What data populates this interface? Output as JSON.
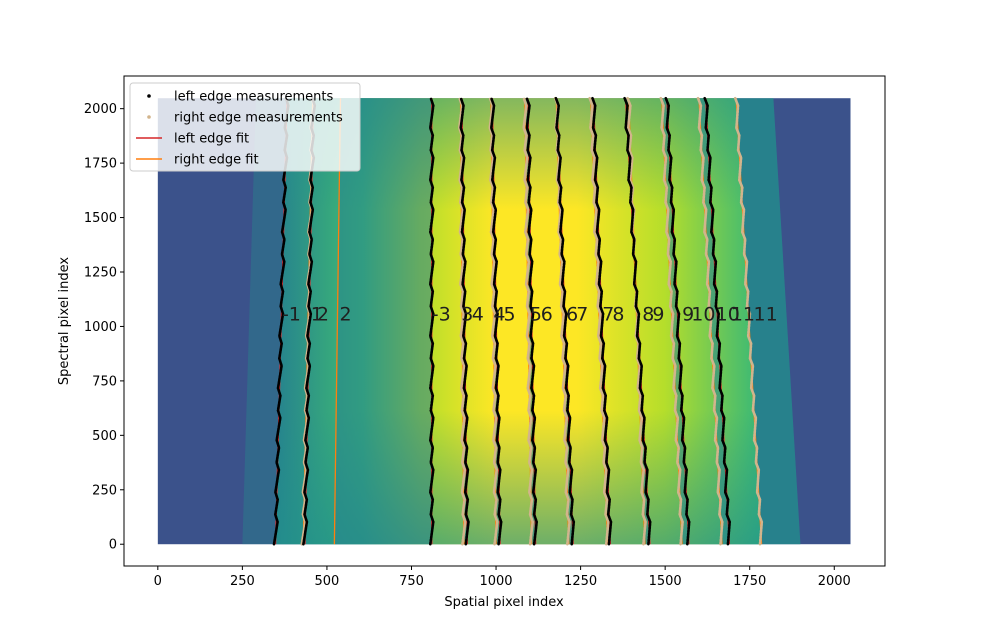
{
  "chart_data": {
    "type": "scatter",
    "xlabel": "Spatial pixel index",
    "ylabel": "Spectral pixel index",
    "xlim": [
      -100,
      2150
    ],
    "ylim": [
      -100,
      2150
    ],
    "xticks": [
      "0",
      "250",
      "500",
      "750",
      "1000",
      "1250",
      "1500",
      "1750",
      "2000"
    ],
    "yticks": [
      "0",
      "250",
      "500",
      "750",
      "1000",
      "1250",
      "1500",
      "1750",
      "2000"
    ],
    "image_extent": {
      "x": [
        0,
        2048
      ],
      "y": [
        0,
        2048
      ]
    },
    "legend": {
      "placement": "upper-left",
      "entries": [
        {
          "label": "left edge measurements",
          "kind": "dot",
          "color": "#000000"
        },
        {
          "label": "right edge measurements",
          "kind": "dot",
          "color": "#d2b48c"
        },
        {
          "label": "left edge fit",
          "kind": "line",
          "color": "#d62728"
        },
        {
          "label": "right edge fit",
          "kind": "line",
          "color": "#ff7f0e"
        }
      ]
    },
    "colors": {
      "background_low": "#3b528b",
      "background_mid": "#21918c",
      "slit_high": "#fde725",
      "left_measure": "#000000",
      "right_measure": "#d2b48c",
      "left_fit": "#d62728",
      "right_fit": "#ff7f0e"
    },
    "left_edges": [
      {
        "x_bottom": 348,
        "x_top": 382,
        "measured": true
      },
      {
        "x_bottom": 435,
        "x_top": 460,
        "measured": true
      },
      {
        "x_bottom": 810,
        "x_top": 810,
        "measured": true
      },
      {
        "x_bottom": 915,
        "x_top": 899,
        "measured": true
      },
      {
        "x_bottom": 1012,
        "x_top": 989,
        "measured": true
      },
      {
        "x_bottom": 1117,
        "x_top": 1094,
        "measured": true
      },
      {
        "x_bottom": 1228,
        "x_top": 1180,
        "measured": true
      },
      {
        "x_bottom": 1338,
        "x_top": 1288,
        "measured": true
      },
      {
        "x_bottom": 1455,
        "x_top": 1383,
        "measured": true
      },
      {
        "x_bottom": 1570,
        "x_top": 1505,
        "measured": true
      },
      {
        "x_bottom": 1690,
        "x_top": 1620,
        "measured": true
      }
    ],
    "right_edges": [
      {
        "x_bottom": 430,
        "x_top": 458,
        "measured": true
      },
      {
        "x_bottom": 522,
        "x_top": 540,
        "measured": false
      },
      {
        "x_bottom": 905,
        "x_top": 895,
        "measured": true
      },
      {
        "x_bottom": 1000,
        "x_top": 985,
        "measured": true
      },
      {
        "x_bottom": 1105,
        "x_top": 1085,
        "measured": true
      },
      {
        "x_bottom": 1215,
        "x_top": 1178,
        "measured": true
      },
      {
        "x_bottom": 1330,
        "x_top": 1280,
        "measured": true
      },
      {
        "x_bottom": 1440,
        "x_top": 1392,
        "measured": true
      },
      {
        "x_bottom": 1550,
        "x_top": 1490,
        "measured": true
      },
      {
        "x_bottom": 1668,
        "x_top": 1600,
        "measured": true
      },
      {
        "x_bottom": 1785,
        "x_top": 1710,
        "measured": true
      }
    ],
    "slit_labels": [
      {
        "text": "-1",
        "x": 395,
        "y": 1060
      },
      {
        "text": "1",
        "x": 470,
        "y": 1060
      },
      {
        "text": "2",
        "x": 488,
        "y": 1060
      },
      {
        "text": "2",
        "x": 555,
        "y": 1060
      },
      {
        "text": "-3",
        "x": 838,
        "y": 1060
      },
      {
        "text": "3",
        "x": 915,
        "y": 1060
      },
      {
        "text": "4",
        "x": 946,
        "y": 1060
      },
      {
        "text": "4",
        "x": 1010,
        "y": 1060
      },
      {
        "text": "5",
        "x": 1040,
        "y": 1060
      },
      {
        "text": "5",
        "x": 1118,
        "y": 1060
      },
      {
        "text": "6",
        "x": 1150,
        "y": 1060
      },
      {
        "text": "6",
        "x": 1225,
        "y": 1060
      },
      {
        "text": "7",
        "x": 1255,
        "y": 1060
      },
      {
        "text": "7",
        "x": 1332,
        "y": 1060
      },
      {
        "text": "8",
        "x": 1362,
        "y": 1060
      },
      {
        "text": "8",
        "x": 1450,
        "y": 1060
      },
      {
        "text": "9",
        "x": 1480,
        "y": 1060
      },
      {
        "text": "9",
        "x": 1568,
        "y": 1060
      },
      {
        "text": "10",
        "x": 1613,
        "y": 1060
      },
      {
        "text": "10",
        "x": 1685,
        "y": 1060
      },
      {
        "text": "11",
        "x": 1730,
        "y": 1060
      },
      {
        "text": "11",
        "x": 1797,
        "y": 1060
      }
    ]
  }
}
